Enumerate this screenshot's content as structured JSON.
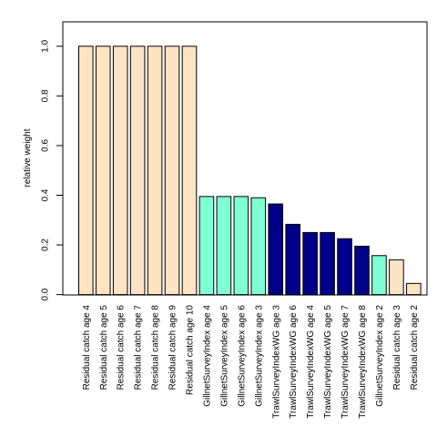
{
  "chart_data": {
    "type": "bar",
    "ylabel": "relative weight",
    "xlabel": "",
    "title": "",
    "ylim": [
      0,
      1.1
    ],
    "yticks": [
      "0.0",
      "0.2",
      "0.4",
      "0.6",
      "0.8",
      "1.0"
    ],
    "grid": false,
    "legend": false,
    "colors": {
      "Residual catch": "#FFE4C4",
      "GillnetSurveyIndex": "#7FFFD4",
      "TrawlSurveyIndexWG": "#00008B",
      "outline": "#000000"
    },
    "bars": [
      {
        "label": "Residual catch age 4",
        "group": "Residual catch",
        "value": 1.0
      },
      {
        "label": "Residual catch age 5",
        "group": "Residual catch",
        "value": 1.0
      },
      {
        "label": "Residual catch age 6",
        "group": "Residual catch",
        "value": 1.0
      },
      {
        "label": "Residual catch age 7",
        "group": "Residual catch",
        "value": 1.0
      },
      {
        "label": "Residual catch age 8",
        "group": "Residual catch",
        "value": 1.0
      },
      {
        "label": "Residual catch age 9",
        "group": "Residual catch",
        "value": 1.0
      },
      {
        "label": "Residual catch age 10",
        "group": "Residual catch",
        "value": 1.0
      },
      {
        "label": "GillnetSurveyIndex age 4",
        "group": "GillnetSurveyIndex",
        "value": 0.395
      },
      {
        "label": "GillnetSurveyIndex age 5",
        "group": "GillnetSurveyIndex",
        "value": 0.395
      },
      {
        "label": "GillnetSurveyIndex age 6",
        "group": "GillnetSurveyIndex",
        "value": 0.395
      },
      {
        "label": "GillnetSurveyIndex age 3",
        "group": "GillnetSurveyIndex",
        "value": 0.39
      },
      {
        "label": "TrawlSurveyIndexWG age 3",
        "group": "TrawlSurveyIndexWG",
        "value": 0.365
      },
      {
        "label": "TrawlSurveyIndexWG age 6",
        "group": "TrawlSurveyIndexWG",
        "value": 0.283
      },
      {
        "label": "TrawlSurveyIndexWG age 4",
        "group": "TrawlSurveyIndexWG",
        "value": 0.25
      },
      {
        "label": "TrawlSurveyIndexWG age 5",
        "group": "TrawlSurveyIndexWG",
        "value": 0.25
      },
      {
        "label": "TrawlSurveyIndexWG age 7",
        "group": "TrawlSurveyIndexWG",
        "value": 0.225
      },
      {
        "label": "TrawlSurveyIndexWG age 8",
        "group": "TrawlSurveyIndexWG",
        "value": 0.195
      },
      {
        "label": "GillnetSurveyIndex age 2",
        "group": "GillnetSurveyIndex",
        "value": 0.157
      },
      {
        "label": "Residual catch age 3",
        "group": "Residual catch",
        "value": 0.14
      },
      {
        "label": "Residual catch age 2",
        "group": "Residual catch",
        "value": 0.045
      }
    ]
  }
}
